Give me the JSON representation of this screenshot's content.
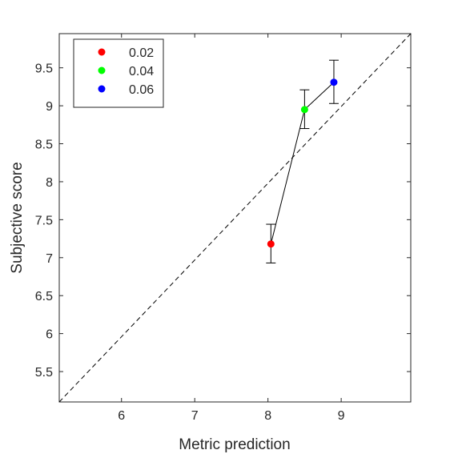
{
  "chart_data": {
    "type": "scatter",
    "title": "",
    "xlabel": "Metric prediction",
    "ylabel": "Subjective score",
    "xlim": [
      5.15,
      9.95
    ],
    "ylim": [
      5.1,
      9.95
    ],
    "xticks": [
      6,
      7,
      8,
      9
    ],
    "yticks": [
      5.5,
      6,
      6.5,
      7,
      7.5,
      8,
      8.5,
      9,
      9.5
    ],
    "grid": false,
    "legend_position": "top-left",
    "reference_line": {
      "style": "dashed",
      "from": [
        5.15,
        5.1
      ],
      "to": [
        9.95,
        9.95
      ]
    },
    "connecting_line": true,
    "series": [
      {
        "name": "0.02",
        "color": "#ff0000",
        "x": 8.04,
        "y": 7.18,
        "err_low": 6.93,
        "err_high": 7.44
      },
      {
        "name": "0.04",
        "color": "#00ff00",
        "x": 8.5,
        "y": 8.95,
        "err_low": 8.7,
        "err_high": 9.21
      },
      {
        "name": "0.06",
        "color": "#0000ff",
        "x": 8.9,
        "y": 9.31,
        "err_low": 9.03,
        "err_high": 9.6
      }
    ]
  }
}
